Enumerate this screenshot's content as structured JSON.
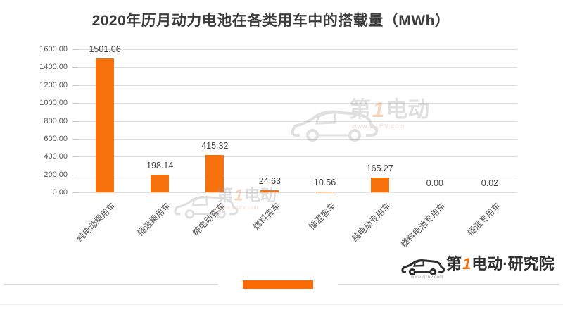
{
  "title": "2020年历月动力电池在各类用车中的搭载量（MWh）",
  "chart_data": {
    "type": "bar",
    "title": "2020年历月动力电池在各类用车中的搭载量（MWh）",
    "categories": [
      "纯电动乘用车",
      "插混乘用车",
      "纯电动客车",
      "燃料客车",
      "插混客车",
      "纯电动专用车",
      "燃料电池专用车",
      "插混专用车"
    ],
    "values": [
      1501.06,
      198.14,
      415.32,
      24.63,
      10.56,
      165.27,
      0.0,
      0.02
    ],
    "value_labels": [
      "1501.06",
      "198.14",
      "415.32",
      "24.63",
      "10.56",
      "165.27",
      "0.00",
      "0.02"
    ],
    "xlabel": "",
    "ylabel": "",
    "ylim": [
      0,
      1600
    ],
    "ytick_step": 200,
    "ytick_labels": [
      "1600.00",
      "1400.00",
      "1200.00",
      "1000.00",
      "800.00",
      "600.00",
      "400.00",
      "200.00",
      "0.00"
    ],
    "grid": true,
    "legend": "none",
    "bar_color": "#f7720c"
  },
  "colors": {
    "bar": "#f7720c",
    "accent": "#fa6a05",
    "grid": "#dedede",
    "divider": "#d9d9d9"
  },
  "watermark": {
    "prefix": "第",
    "num": "1",
    "suffix": "电动",
    "site": "www.D1EV.com"
  },
  "footer_logo": {
    "prefix": "第",
    "num": "1",
    "suffix": "电动",
    "sep": "·",
    "org": "研究院",
    "site": "www.d1ev.com"
  }
}
